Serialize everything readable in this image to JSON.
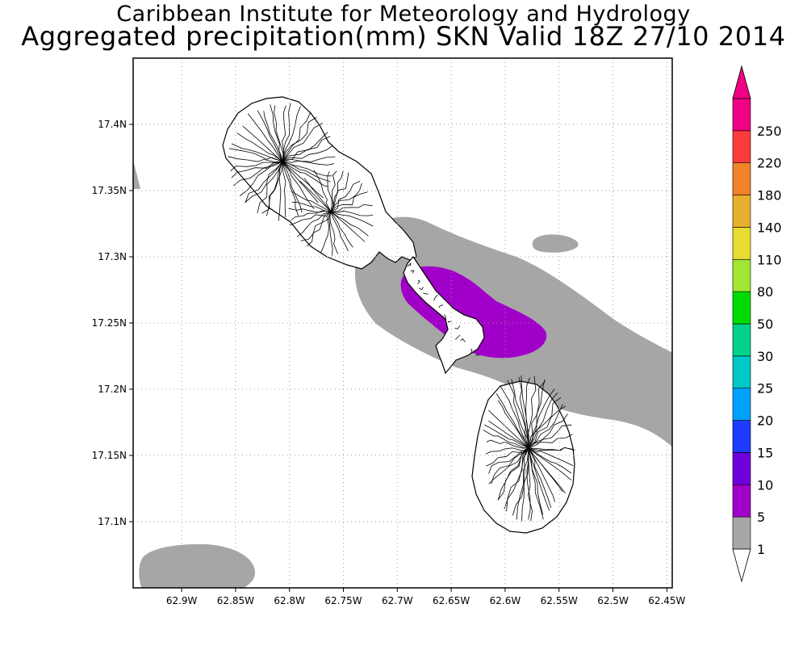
{
  "header": {
    "institute": "Caribbean Institute for Meteorology and Hydrology",
    "product": "Aggregated precipitation(mm) SKN Valid 18Z 27/10 2014"
  },
  "map": {
    "lon_range": [
      -62.945,
      -62.445
    ],
    "lat_range": [
      17.05,
      17.45
    ],
    "lat_ticks": [
      {
        "value": 17.4,
        "label": "17.4N"
      },
      {
        "value": 17.35,
        "label": "17.35N"
      },
      {
        "value": 17.3,
        "label": "17.3N"
      },
      {
        "value": 17.25,
        "label": "17.25N"
      },
      {
        "value": 17.2,
        "label": "17.2N"
      },
      {
        "value": 17.15,
        "label": "17.15N"
      },
      {
        "value": 17.1,
        "label": "17.1N"
      }
    ],
    "lon_ticks": [
      {
        "value": -62.9,
        "label": "62.9W"
      },
      {
        "value": -62.85,
        "label": "62.85W"
      },
      {
        "value": -62.8,
        "label": "62.8W"
      },
      {
        "value": -62.75,
        "label": "62.75W"
      },
      {
        "value": -62.7,
        "label": "62.7W"
      },
      {
        "value": -62.65,
        "label": "62.65W"
      },
      {
        "value": -62.6,
        "label": "62.6W"
      },
      {
        "value": -62.55,
        "label": "62.55W"
      },
      {
        "value": -62.5,
        "label": "62.5W"
      },
      {
        "value": -62.45,
        "label": "62.45W"
      }
    ],
    "grid": true,
    "land_color": "#ffffff",
    "coast_color": "#000000"
  },
  "colorbar": {
    "levels": [
      "1",
      "5",
      "10",
      "15",
      "20",
      "25",
      "30",
      "50",
      "80",
      "110",
      "140",
      "180",
      "220",
      "250"
    ],
    "colors": [
      "#a6a6a6",
      "#a000c8",
      "#6e00dc",
      "#1e3cff",
      "#00a0ff",
      "#00c8c8",
      "#00d28c",
      "#00dc00",
      "#a0e632",
      "#e6dc32",
      "#e6af2d",
      "#f08228",
      "#fa3c3c",
      "#f00082"
    ]
  }
}
